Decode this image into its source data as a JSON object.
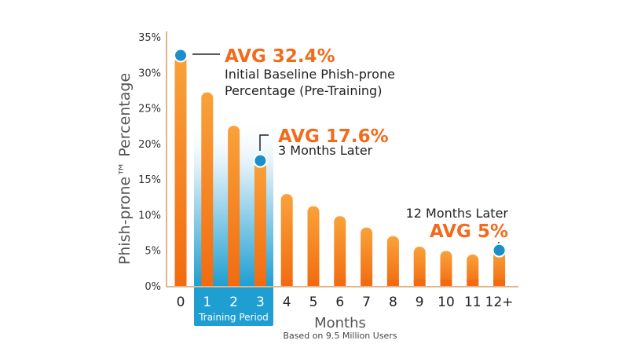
{
  "chart_data": {
    "type": "bar",
    "title": "",
    "xlabel": "Months",
    "ylabel": "Phish-prone™ Percentage",
    "footnote": "Based on 9.5 Million Users",
    "categories": [
      "0",
      "1",
      "2",
      "3",
      "4",
      "5",
      "6",
      "7",
      "8",
      "9",
      "10",
      "11",
      "12+"
    ],
    "values": [
      32.4,
      27.2,
      22.5,
      17.6,
      12.9,
      11.2,
      9.8,
      8.2,
      7.0,
      5.5,
      4.9,
      4.4,
      5.0
    ],
    "ylim": [
      0,
      35
    ],
    "yticks": [
      "0%",
      "5%",
      "10%",
      "15%",
      "20%",
      "25%",
      "30%",
      "35%"
    ],
    "grid": false,
    "highlight_region": {
      "label": "Training Period",
      "categories": [
        "1",
        "2",
        "3"
      ]
    },
    "annotations": [
      {
        "category": "0",
        "value": 32.4,
        "title": "AVG 32.4%",
        "lines": [
          "Initial Baseline Phish-prone",
          "Percentage (Pre-Training)"
        ]
      },
      {
        "category": "3",
        "value": 17.6,
        "title": "AVG 17.6%",
        "lines": [
          "3 Months Later"
        ]
      },
      {
        "category": "12+",
        "value": 5.0,
        "title": "AVG 5%",
        "lines": [
          "12 Months Later"
        ]
      }
    ],
    "colors": {
      "bar": "#f47a20",
      "bar_light": "#f9a23a",
      "marker": "#1a8fc9",
      "axis": "#e0b48c",
      "accent_text": "#f26b1d",
      "training": "#1f9fd1"
    }
  }
}
